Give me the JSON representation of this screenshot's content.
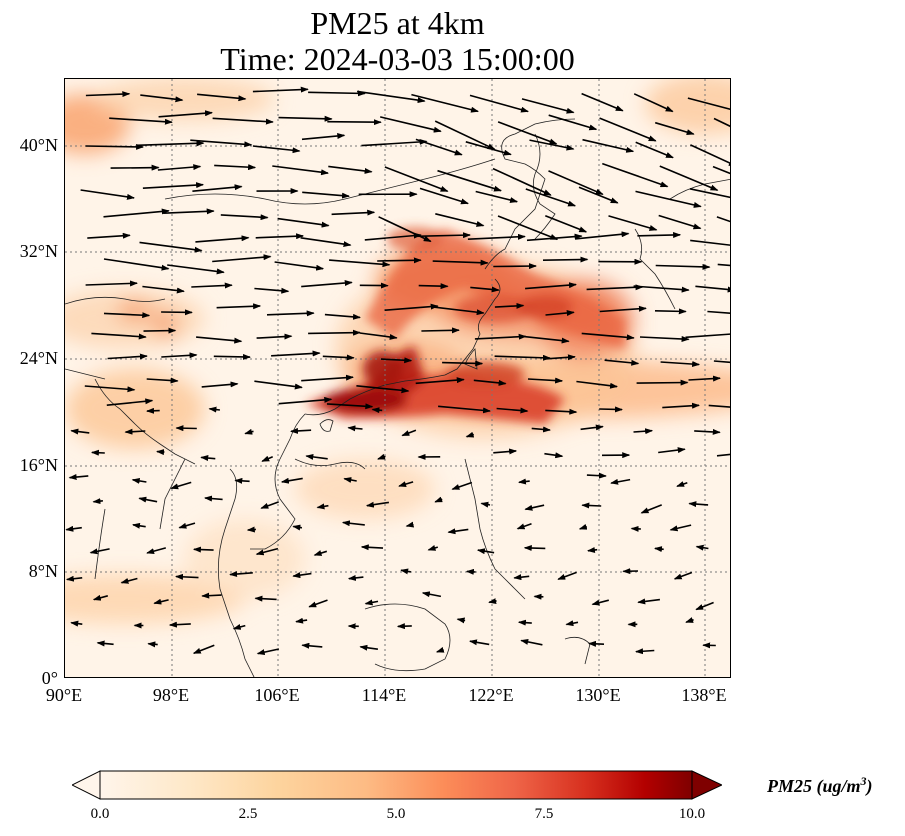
{
  "title": {
    "line1": "PM25 at 4km",
    "line2": "Time: 2024-03-03 15:00:00"
  },
  "map": {
    "lon_range": [
      90,
      140
    ],
    "lat_range": [
      0,
      45
    ],
    "lat_ticks": [
      {
        "value": 40,
        "label": "40°N"
      },
      {
        "value": 32,
        "label": "32°N"
      },
      {
        "value": 24,
        "label": "24°N"
      },
      {
        "value": 16,
        "label": "16°N"
      },
      {
        "value": 8,
        "label": "8°N"
      },
      {
        "value": 0,
        "label": "0°"
      }
    ],
    "lon_ticks": [
      {
        "value": 90,
        "label": "90°E"
      },
      {
        "value": 98,
        "label": "98°E"
      },
      {
        "value": 106,
        "label": "106°E"
      },
      {
        "value": 114,
        "label": "114°E"
      },
      {
        "value": 122,
        "label": "122°E"
      },
      {
        "value": 130,
        "label": "130°E"
      },
      {
        "value": 138,
        "label": "138°E"
      }
    ],
    "gridlines": "dotted"
  },
  "colorbar": {
    "label": "PM25",
    "unit": "ug/m",
    "unit_exponent": "3",
    "ticks": [
      "0.0",
      "2.5",
      "5.0",
      "7.5",
      "10.0"
    ],
    "range": [
      0,
      10
    ],
    "extend": "both",
    "colormap": [
      "#fff5eb",
      "#fdd49e",
      "#fdbb84",
      "#fc8d59",
      "#ef6548",
      "#d7301f",
      "#b30000",
      "#7f0000"
    ]
  }
}
